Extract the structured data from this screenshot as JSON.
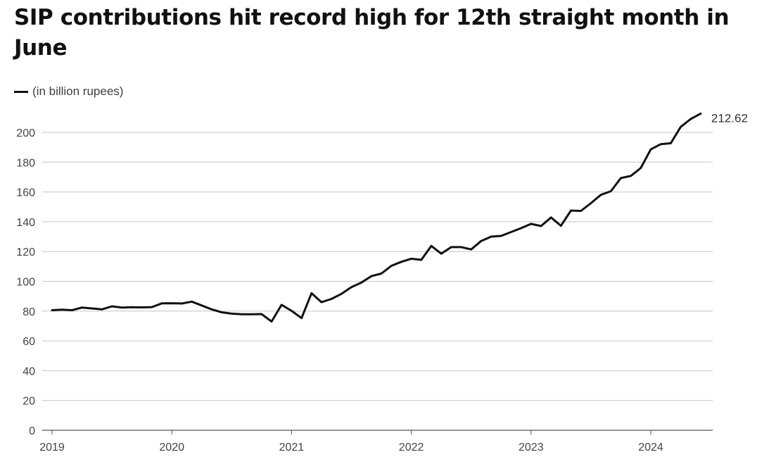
{
  "chart_data": {
    "type": "line",
    "title": "SIP contributions hit record high for 12th straight month in June",
    "legend": "(in billion rupees)",
    "legend_position": "top-left",
    "ylim": [
      0,
      212.62
    ],
    "yticks": [
      0,
      20,
      40,
      60,
      80,
      100,
      120,
      140,
      160,
      180,
      200
    ],
    "xticks": [
      "2019",
      "2020",
      "2021",
      "2022",
      "2023",
      "2024"
    ],
    "grid": "horizontal",
    "end_label": "212.62",
    "line_color": "#111111",
    "series": [
      {
        "x": [
          "2019-01",
          "2019-02",
          "2019-03",
          "2019-04",
          "2019-05",
          "2019-06",
          "2019-07",
          "2019-08",
          "2019-09",
          "2019-10",
          "2019-11",
          "2019-12",
          "2020-01",
          "2020-02",
          "2020-03",
          "2020-04",
          "2020-05",
          "2020-06",
          "2020-07",
          "2020-08",
          "2020-09",
          "2020-10",
          "2020-11",
          "2020-12",
          "2021-01",
          "2021-02",
          "2021-03",
          "2021-04",
          "2021-05",
          "2021-06",
          "2021-07",
          "2021-08",
          "2021-09",
          "2021-10",
          "2021-11",
          "2021-12",
          "2022-01",
          "2022-02",
          "2022-03",
          "2022-04",
          "2022-05",
          "2022-06",
          "2022-07",
          "2022-08",
          "2022-09",
          "2022-10",
          "2022-11",
          "2022-12",
          "2023-01",
          "2023-02",
          "2023-03",
          "2023-04",
          "2023-05",
          "2023-06",
          "2023-07",
          "2023-08",
          "2023-09",
          "2023-10",
          "2023-11",
          "2023-12",
          "2024-01",
          "2024-02",
          "2024-03",
          "2024-04",
          "2024-05",
          "2024-06"
        ],
        "values": [
          80.6,
          81.0,
          80.6,
          82.4,
          81.8,
          81.2,
          83.2,
          82.4,
          82.6,
          82.5,
          82.7,
          85.2,
          85.3,
          85.1,
          86.4,
          83.8,
          81.2,
          79.2,
          78.3,
          77.9,
          77.9,
          78.0,
          73.0,
          84.2,
          80.2,
          75.3,
          92.0,
          86.0,
          88.2,
          91.6,
          96.1,
          99.2,
          103.5,
          105.2,
          110.4,
          113.1,
          115.2,
          114.4,
          123.8,
          118.6,
          123.0,
          123.0,
          121.4,
          127.1,
          130.0,
          130.5,
          133.1,
          135.7,
          138.6,
          137.1,
          142.9,
          137.3,
          147.5,
          147.3,
          152.5,
          158.1,
          160.5,
          169.3,
          170.8,
          176.1,
          188.6,
          192.1,
          192.7,
          203.7,
          209.0,
          212.62
        ]
      }
    ]
  }
}
